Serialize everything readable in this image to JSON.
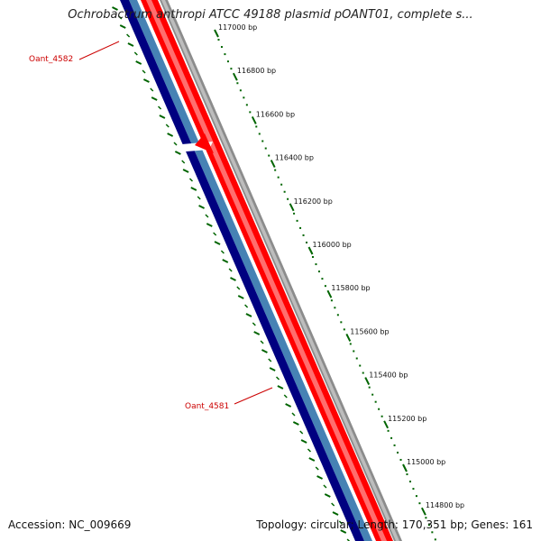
{
  "map": {
    "title": "Ochrobactrum anthropi ATCC 49188 plasmid pOANT01, complete s...",
    "accession_label": "Accession: NC_009669",
    "summary_label": "Topology: circular; Length: 170,351 bp; Genes: 161",
    "colors": {
      "forward_gene": "#ff0000",
      "reverse_gene": "#000080",
      "reverse_inner": "#4682b4",
      "backbone": "#808080",
      "ticks": "#006400",
      "gene_label": "#cc0000"
    },
    "scale_ticks": [
      {
        "bp": 117000,
        "label": "117000 bp"
      },
      {
        "bp": 116800,
        "label": "116800 bp"
      },
      {
        "bp": 116600,
        "label": "116600 bp"
      },
      {
        "bp": 116400,
        "label": "116400 bp"
      },
      {
        "bp": 116200,
        "label": "116200 bp"
      },
      {
        "bp": 116000,
        "label": "116000 bp"
      },
      {
        "bp": 115800,
        "label": "115800 bp"
      },
      {
        "bp": 115600,
        "label": "115600 bp"
      },
      {
        "bp": 115400,
        "label": "115400 bp"
      },
      {
        "bp": 115200,
        "label": "115200 bp"
      },
      {
        "bp": 115000,
        "label": "115000 bp"
      },
      {
        "bp": 114800,
        "label": "114800 bp"
      }
    ],
    "genes": [
      {
        "name": "Oant_4582",
        "strand": "reverse"
      },
      {
        "name": "Oant_4581",
        "strand": "reverse"
      }
    ]
  }
}
